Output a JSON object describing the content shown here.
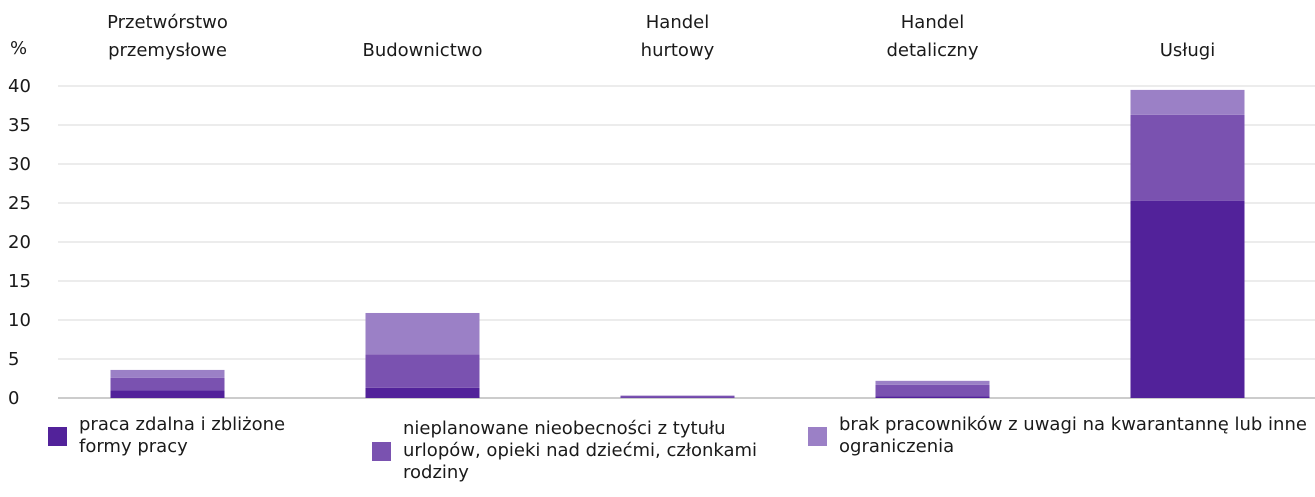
{
  "chart_data": {
    "type": "stacked_bar",
    "y_label": "%",
    "categories": [
      "Przetwórstwo przemysłowe",
      "Budownictwo",
      "Handel hurtowy",
      "Handel detaliczny",
      "Usługi"
    ],
    "series": [
      {
        "name": "praca zdalna i zbliżone formy pracy",
        "color": "#52229a",
        "values": [
          1.0,
          1.3,
          0.1,
          0.2,
          25.3
        ]
      },
      {
        "name": "nieplanowane nieobecności z tytułu urlopów, opieki nad dziećmi, członkami rodziny",
        "color": "#7a52b0",
        "values": [
          1.6,
          4.3,
          0.2,
          1.5,
          11.0
        ]
      },
      {
        "name": "brak pracowników z uwagi na kwarantannę lub inne ograniczenia",
        "color": "#9b80c6",
        "values": [
          1.0,
          5.3,
          0,
          0.5,
          3.2
        ]
      }
    ],
    "ylim": [
      0,
      40
    ],
    "yticks": [
      0,
      5,
      10,
      15,
      20,
      25,
      30,
      35,
      40
    ],
    "grid": true
  }
}
